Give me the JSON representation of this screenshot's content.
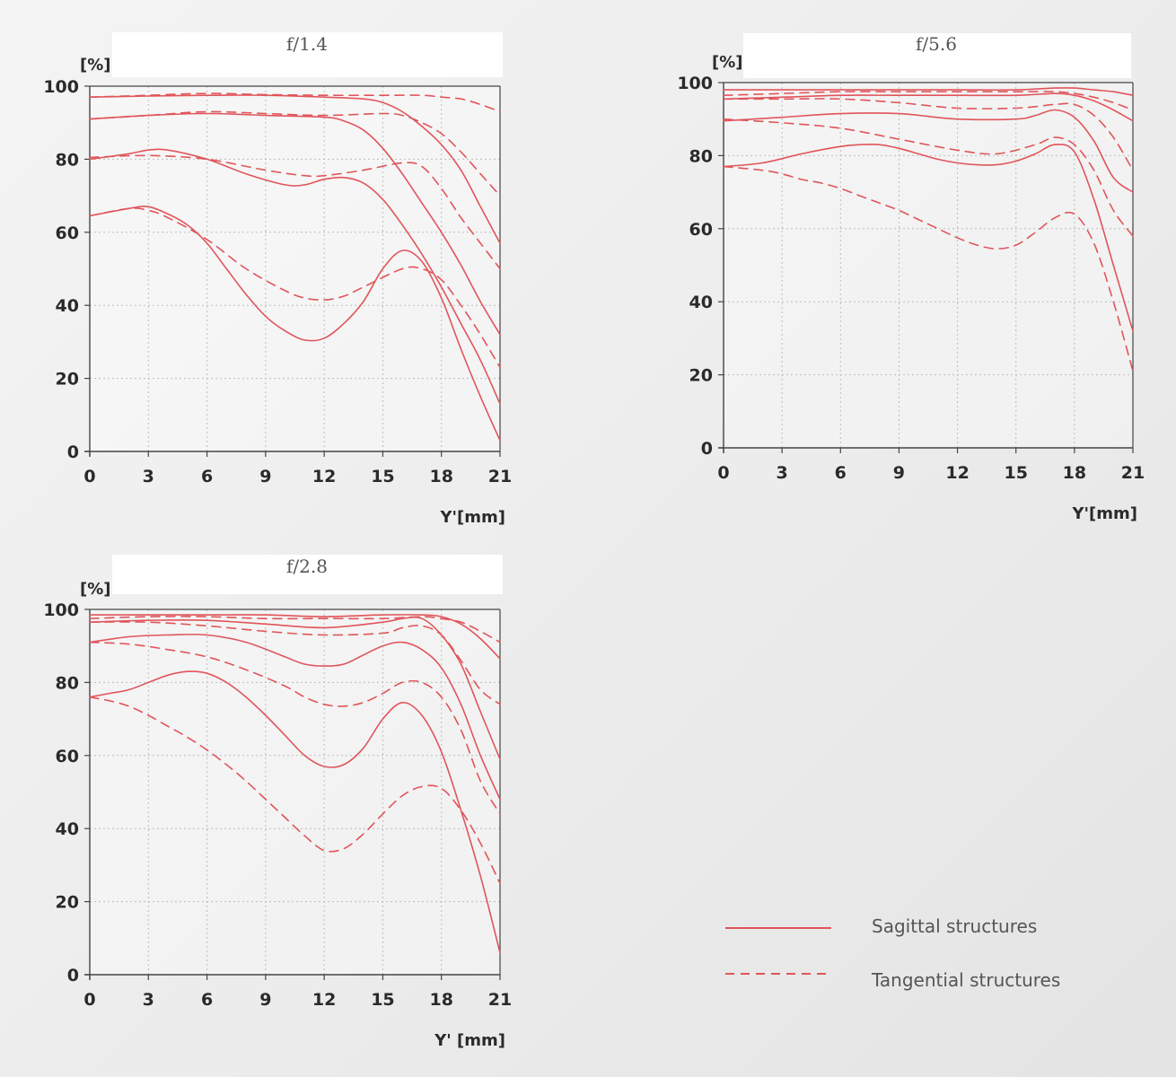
{
  "colors": {
    "curve": "#e0555b",
    "grid": "#bdbdbd",
    "axis": "#444444",
    "title_box": "#ffffff"
  },
  "legend": {
    "sagittal": "Sagittal structures",
    "tangential": "Tangential structures"
  },
  "chart_data": [
    {
      "type": "line",
      "title": "f/1.4",
      "ylabel": "[%]",
      "xlabel": "Y'[mm]",
      "xlim": [
        0,
        21
      ],
      "ylim": [
        0,
        100
      ],
      "xticks": [
        "0",
        "3",
        "6",
        "9",
        "12",
        "15",
        "18",
        "21"
      ],
      "yticks": [
        "0",
        "20",
        "40",
        "60",
        "80",
        "100"
      ],
      "grid": true,
      "series": [
        {
          "style": "solid",
          "x": [
            0,
            3,
            6,
            9,
            12,
            14,
            15,
            16,
            17,
            18,
            19,
            20,
            21
          ],
          "y": [
            97,
            97.3,
            97.5,
            97.5,
            97,
            96.5,
            95.5,
            93,
            89,
            84,
            77,
            67,
            57
          ]
        },
        {
          "style": "dashed",
          "x": [
            0,
            3,
            6,
            9,
            12,
            15,
            17,
            18,
            19,
            20,
            21
          ],
          "y": [
            97,
            97.5,
            98,
            97.7,
            97.5,
            97.5,
            97.5,
            97,
            96.5,
            95,
            93
          ]
        },
        {
          "style": "solid",
          "x": [
            0,
            3,
            6,
            9,
            12,
            13,
            14,
            15,
            16,
            17,
            18,
            19,
            20,
            21
          ],
          "y": [
            91,
            92,
            92.5,
            92,
            91.5,
            90.5,
            88,
            83,
            76,
            68,
            60,
            51,
            41,
            32
          ]
        },
        {
          "style": "dashed",
          "x": [
            0,
            3,
            6,
            9,
            12,
            15,
            16,
            17,
            18,
            19,
            20,
            21
          ],
          "y": [
            91,
            92,
            93,
            92.5,
            92,
            92.5,
            92,
            90,
            87,
            82,
            76,
            70
          ]
        },
        {
          "style": "solid",
          "x": [
            0,
            2,
            3,
            4,
            6,
            8,
            10,
            11,
            12,
            13,
            14,
            15,
            16,
            17,
            18,
            19,
            20,
            21
          ],
          "y": [
            80,
            81.5,
            82.5,
            82.5,
            80,
            76,
            73,
            73,
            74.5,
            75,
            73.5,
            69,
            62,
            54,
            45,
            35,
            25,
            13
          ]
        },
        {
          "style": "dashed",
          "x": [
            0,
            3,
            6,
            9,
            11,
            12,
            14,
            16,
            17,
            18,
            19,
            20,
            21
          ],
          "y": [
            80.5,
            81,
            80,
            77,
            75.5,
            75.5,
            77,
            79,
            78,
            72,
            64,
            57,
            50
          ]
        },
        {
          "style": "solid",
          "x": [
            0,
            2,
            3,
            4,
            5,
            6,
            7,
            8,
            9,
            10,
            11,
            12,
            13,
            14,
            15,
            16,
            17,
            18,
            19,
            20,
            21
          ],
          "y": [
            64.5,
            66.5,
            67,
            65,
            62,
            57,
            50,
            43,
            37,
            33,
            30.5,
            31,
            35,
            41,
            50,
            55,
            52,
            42,
            28,
            15,
            3
          ]
        },
        {
          "style": "dashed",
          "x": [
            0,
            2,
            3,
            4,
            6,
            8,
            10,
            11,
            12,
            13,
            14,
            16,
            17,
            18,
            19,
            20,
            21
          ],
          "y": [
            64.5,
            66.5,
            66,
            64,
            58,
            50,
            44,
            42,
            41.5,
            42.5,
            45,
            50,
            50,
            47,
            40,
            32,
            23
          ]
        }
      ]
    },
    {
      "type": "line",
      "title": "f/5.6",
      "ylabel": "[%]",
      "xlabel": "Y'[mm]",
      "xlim": [
        0,
        21
      ],
      "ylim": [
        0,
        100
      ],
      "xticks": [
        "0",
        "3",
        "6",
        "9",
        "12",
        "15",
        "18",
        "21"
      ],
      "yticks": [
        "0",
        "20",
        "40",
        "60",
        "80",
        "100"
      ],
      "grid": true,
      "series": [
        {
          "style": "solid",
          "x": [
            0,
            3,
            6,
            9,
            12,
            15,
            17,
            18,
            19,
            20,
            21
          ],
          "y": [
            98,
            98,
            98,
            98,
            98,
            98,
            98.5,
            98.5,
            98,
            97.5,
            96.5
          ]
        },
        {
          "style": "dashed",
          "x": [
            0,
            3,
            6,
            9,
            12,
            15,
            17,
            18,
            19,
            20,
            21
          ],
          "y": [
            96.5,
            97,
            97.5,
            97.5,
            97.5,
            97.5,
            97.5,
            97,
            96,
            94.5,
            92.5
          ]
        },
        {
          "style": "solid",
          "x": [
            0,
            3,
            6,
            9,
            12,
            15,
            17,
            18,
            19,
            20,
            21
          ],
          "y": [
            95.5,
            96,
            96.5,
            96.5,
            96.5,
            96.5,
            97,
            96.5,
            95,
            92.5,
            89.5
          ]
        },
        {
          "style": "dashed",
          "x": [
            0,
            3,
            6,
            9,
            12,
            15,
            17,
            18,
            19,
            20,
            21
          ],
          "y": [
            95.5,
            95.5,
            95.5,
            94.5,
            93,
            93,
            94,
            94,
            91,
            85,
            76
          ]
        },
        {
          "style": "solid",
          "x": [
            0,
            3,
            6,
            9,
            12,
            15,
            16,
            17,
            18,
            19,
            20,
            21
          ],
          "y": [
            89.5,
            90.5,
            91.5,
            91.5,
            90,
            90,
            91,
            92.5,
            90.5,
            84,
            74,
            70
          ]
        },
        {
          "style": "dashed",
          "x": [
            0,
            3,
            6,
            9,
            12,
            14,
            16,
            17,
            18,
            19,
            20,
            21
          ],
          "y": [
            90,
            89,
            87.5,
            84.5,
            81.5,
            80.5,
            83,
            85,
            83,
            76,
            65,
            58
          ]
        },
        {
          "style": "solid",
          "x": [
            0,
            2,
            4,
            6,
            7,
            8,
            9,
            10,
            11,
            12,
            13,
            14,
            15,
            16,
            17,
            18,
            19,
            20,
            21
          ],
          "y": [
            77,
            78,
            80.5,
            82.5,
            83,
            83,
            82,
            80.5,
            79,
            78,
            77.5,
            77.5,
            78.5,
            80.5,
            83,
            81,
            68,
            50,
            32
          ]
        },
        {
          "style": "dashed",
          "x": [
            0,
            2,
            3,
            4,
            5,
            6,
            7,
            8,
            9,
            10,
            11,
            12,
            13,
            14,
            15,
            16,
            17,
            18,
            19,
            20,
            21
          ],
          "y": [
            77,
            76,
            75,
            73.5,
            72.5,
            71,
            69,
            67,
            65,
            62.5,
            60,
            57.5,
            55.5,
            54.5,
            55.5,
            59,
            63,
            64,
            56,
            40,
            21
          ]
        }
      ]
    },
    {
      "type": "line",
      "title": "f/2.8",
      "ylabel": "[%]",
      "xlabel": "Y' [mm]",
      "xlim": [
        0,
        21
      ],
      "ylim": [
        0,
        100
      ],
      "xticks": [
        "0",
        "3",
        "6",
        "9",
        "12",
        "15",
        "18",
        "21"
      ],
      "yticks": [
        "0",
        "20",
        "40",
        "60",
        "80",
        "100"
      ],
      "grid": true,
      "series": [
        {
          "style": "solid",
          "x": [
            0,
            3,
            6,
            9,
            12,
            15,
            17,
            18,
            19,
            20,
            21
          ],
          "y": [
            98.5,
            98.5,
            98.5,
            98.5,
            98,
            98.5,
            98.5,
            98,
            96,
            92,
            86.5
          ]
        },
        {
          "style": "dashed",
          "x": [
            0,
            3,
            6,
            9,
            12,
            15,
            17,
            18,
            19,
            20,
            21
          ],
          "y": [
            97.5,
            98,
            98,
            97.5,
            97.5,
            97.5,
            98,
            97.5,
            96.5,
            94,
            91
          ]
        },
        {
          "style": "solid",
          "x": [
            0,
            3,
            6,
            9,
            12,
            15,
            16,
            17,
            18,
            19,
            20,
            21
          ],
          "y": [
            96.5,
            97,
            97,
            96,
            95,
            96.5,
            97.5,
            97.5,
            93,
            85,
            72,
            59
          ]
        },
        {
          "style": "dashed",
          "x": [
            0,
            3,
            6,
            9,
            12,
            15,
            16,
            17,
            18,
            19,
            20,
            21
          ],
          "y": [
            96.5,
            96.5,
            95.5,
            94,
            93,
            93.5,
            95,
            95.5,
            93,
            86,
            78,
            74
          ]
        },
        {
          "style": "solid",
          "x": [
            0,
            2,
            4,
            6,
            8,
            10,
            11,
            12,
            13,
            14,
            15,
            16,
            17,
            18,
            19,
            20,
            21
          ],
          "y": [
            91,
            92.5,
            93,
            93,
            91,
            87,
            85,
            84.5,
            85,
            87.5,
            90,
            91,
            89,
            84,
            74,
            60,
            48
          ]
        },
        {
          "style": "dashed",
          "x": [
            0,
            2,
            4,
            6,
            8,
            10,
            11,
            12,
            13,
            14,
            15,
            16,
            17,
            18,
            19,
            20,
            21
          ],
          "y": [
            91,
            90.5,
            89,
            87,
            83.5,
            79,
            76,
            74,
            73.5,
            74.5,
            77,
            80,
            80,
            76,
            67,
            53,
            44
          ]
        },
        {
          "style": "solid",
          "x": [
            0,
            1,
            2,
            3,
            4,
            5,
            6,
            7,
            8,
            9,
            10,
            11,
            12,
            13,
            14,
            15,
            16,
            17,
            18,
            19,
            20,
            21
          ],
          "y": [
            76,
            77,
            78,
            80,
            82,
            83,
            82.5,
            80,
            76,
            71,
            65.5,
            60,
            57,
            57.5,
            62,
            70,
            74.5,
            71,
            61,
            45,
            27,
            6
          ]
        },
        {
          "style": "dashed",
          "x": [
            0,
            1,
            2,
            3,
            4,
            5,
            6,
            7,
            8,
            9,
            10,
            11,
            12,
            13,
            14,
            15,
            16,
            17,
            18,
            19,
            20,
            21
          ],
          "y": [
            76,
            75,
            73.5,
            71,
            68,
            65,
            61.5,
            57.5,
            53,
            48,
            43,
            38,
            34,
            34.5,
            38.5,
            44,
            49,
            51.5,
            51,
            45,
            36,
            25
          ]
        }
      ]
    }
  ]
}
